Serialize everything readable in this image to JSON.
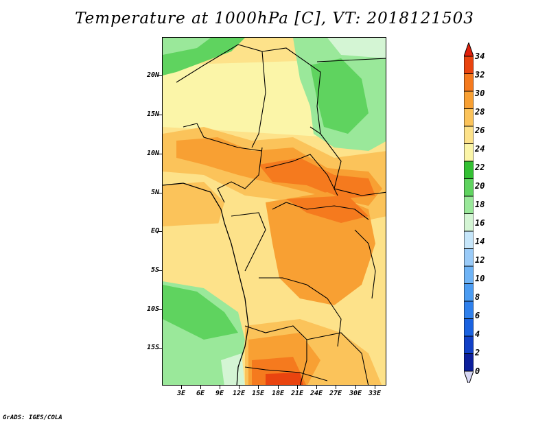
{
  "title": "Temperature at 1000hPa [C], VT: 2018121503",
  "credit": "GrADS: IGES/COLA",
  "map": {
    "lat_labels": [
      "20N",
      "15N",
      "10N",
      "5N",
      "EQ",
      "5S",
      "10S",
      "15S"
    ],
    "lon_labels": [
      "3E",
      "6E",
      "9E",
      "12E",
      "15E",
      "18E",
      "21E",
      "24E",
      "27E",
      "30E",
      "33E"
    ]
  },
  "colorbar": {
    "levels": [
      "0",
      "2",
      "4",
      "6",
      "8",
      "10",
      "12",
      "14",
      "16",
      "18",
      "20",
      "22",
      "24",
      "26",
      "28",
      "30",
      "32",
      "34"
    ],
    "colors": [
      "#0b0b6e",
      "#0c1f9c",
      "#1140c6",
      "#1a62e0",
      "#2f80ec",
      "#4b9cf2",
      "#6fb4f6",
      "#9acbf8",
      "#c6e6fa",
      "#d4f5d4",
      "#9ae89a",
      "#5fd35f",
      "#33c033",
      "#fbf5a8",
      "#fde28a",
      "#fbc35a",
      "#f8a033",
      "#f57a1e",
      "#e9440f",
      "#e01f0a"
    ]
  }
}
